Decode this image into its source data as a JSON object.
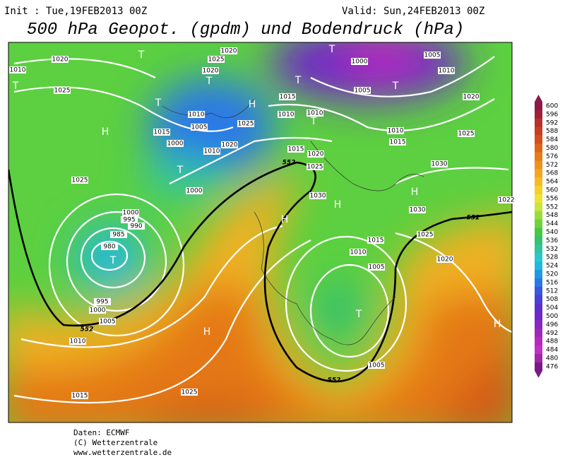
{
  "header": {
    "init": "Init : Tue,19FEB2013 00Z",
    "valid": "Valid: Sun,24FEB2013 00Z",
    "title": "500 hPa Geopot. (gpdm) und Bodendruck (hPa)"
  },
  "colorbar": {
    "labels": [
      600,
      596,
      592,
      588,
      584,
      580,
      576,
      572,
      568,
      564,
      560,
      556,
      552,
      548,
      544,
      540,
      536,
      532,
      528,
      524,
      520,
      516,
      512,
      508,
      504,
      500,
      496,
      492,
      488,
      484,
      480,
      476
    ],
    "colors": [
      "#8b1a4a",
      "#a0203a",
      "#b8302a",
      "#c83e20",
      "#d4501a",
      "#e06418",
      "#e87a18",
      "#ef901c",
      "#f4a51f",
      "#f7bb22",
      "#f5d028",
      "#ede432",
      "#c8e63c",
      "#98dc3c",
      "#6ed23c",
      "#48c840",
      "#38c070",
      "#30c4a0",
      "#28c8c8",
      "#20b8e0",
      "#2098e8",
      "#2a78e8",
      "#3858e0",
      "#4840d8",
      "#5a30d0",
      "#7028c8",
      "#8828c0",
      "#a028b8",
      "#b828c0",
      "#c030c8",
      "#a028a8",
      "#7a1a88"
    ]
  },
  "map": {
    "isobar_labels": [
      1020,
      1025,
      1025,
      1000,
      995,
      990,
      985,
      980,
      995,
      1000,
      1005,
      1010,
      1015,
      1025,
      1000,
      1015,
      1000,
      1005,
      1010,
      1020,
      1010,
      1020,
      1025,
      1025,
      1015,
      1010,
      1010,
      1015,
      1020,
      1025,
      1030,
      1000,
      1005,
      1005,
      1010,
      1020,
      1025,
      1010,
      1015,
      1030,
      1030,
      1025,
      1020,
      1015,
      1010,
      1005,
      1005,
      1020,
      1010,
      1022
    ],
    "contour_552_labels": [
      552,
      552,
      552,
      552
    ],
    "centers": [
      "T",
      "T",
      "T",
      "T",
      "T",
      "T",
      "T",
      "H",
      "H",
      "T",
      "T",
      "H",
      "H",
      "H",
      "T",
      "T",
      "H",
      "H"
    ]
  },
  "footer": [
    "Daten: ECMWF",
    "(C) Wetterzentrale",
    "www.wetterzentrale.de"
  ]
}
